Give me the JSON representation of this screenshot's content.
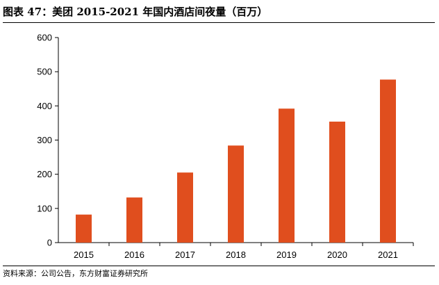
{
  "header": {
    "title": "图表 47：美团 2015-2021 年国内酒店间夜量（百万）"
  },
  "footer": {
    "source": "资料来源：公司公告，东方财富证券研究所"
  },
  "chart_data": {
    "type": "bar",
    "title": "图表 47：美团 2015-2021 年国内酒店间夜量（百万）",
    "xlabel": "",
    "ylabel": "",
    "categories": [
      "2015",
      "2016",
      "2017",
      "2018",
      "2019",
      "2020",
      "2021"
    ],
    "values": [
      82,
      132,
      205,
      284,
      392,
      354,
      477
    ],
    "ylim": [
      0,
      600
    ],
    "yticks": [
      0,
      100,
      200,
      300,
      400,
      500,
      600
    ],
    "grid": false,
    "legend": "none",
    "bar_color": "#E04E1E",
    "axis_color": "#000000"
  }
}
